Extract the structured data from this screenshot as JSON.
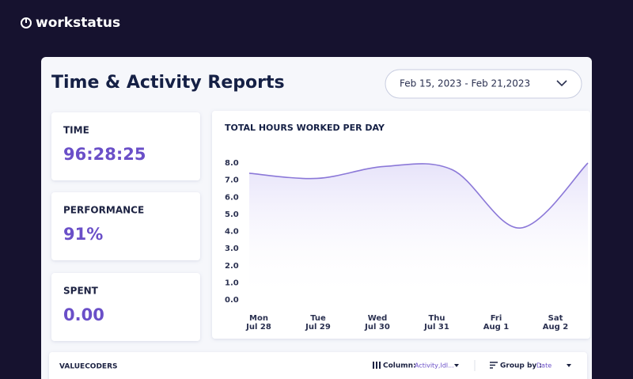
{
  "header": {
    "logo": "workstatus"
  },
  "page": {
    "title": "Time & Activity Reports",
    "date_range": "Feb 15, 2023 - Feb 21,2023"
  },
  "stats": [
    {
      "label": "TIME",
      "value": "96:28:25"
    },
    {
      "label": "PERFORMANCE",
      "value": "91%"
    },
    {
      "label": "SPENT",
      "value": "0.00"
    }
  ],
  "chart_data": {
    "type": "line",
    "title": "TOTAL HOURS WORKED PER DAY",
    "categories": [
      "Mon",
      "Tue",
      "Wed",
      "Thu",
      "Fri",
      "Sat"
    ],
    "category_dates": [
      "Jul 28",
      "Jul 29",
      "Jul 30",
      "Jul 31",
      "Aug 1",
      "Aug 2"
    ],
    "values": [
      7.4,
      7.1,
      7.8,
      7.6,
      4.2,
      8.0
    ],
    "color": "#8b78d8",
    "ylim": [
      0,
      8
    ],
    "yticks": [
      {
        "value": 8,
        "label": "8.0"
      },
      {
        "value": 7,
        "label": "7.0"
      },
      {
        "value": 6,
        "label": "6.0"
      },
      {
        "value": 5,
        "label": "5.0"
      },
      {
        "value": 4,
        "label": "4.0"
      },
      {
        "value": 3,
        "label": "3.0"
      },
      {
        "value": 2,
        "label": "2.0"
      },
      {
        "value": 1,
        "label": "1.0"
      },
      {
        "value": 0,
        "label": "0.0"
      }
    ],
    "grid": false
  },
  "table": {
    "title": "VALUECODERS",
    "column_label": "Column:",
    "column_value": "Activity,Idl...",
    "group_label": "Group by :",
    "group_value": "Date"
  }
}
